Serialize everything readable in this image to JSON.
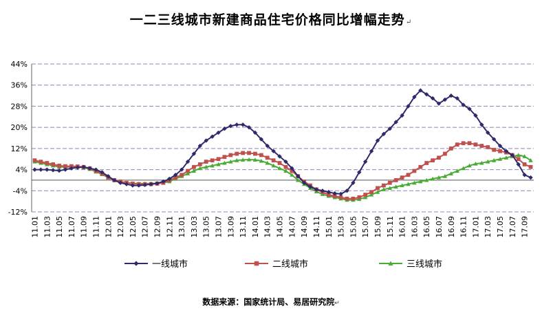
{
  "title": "一二三线城市新建商品住宅价格同比增幅走势",
  "edit_mark": "↵",
  "source": "数据来源：国家统计局、易居研究院",
  "chart_data": {
    "type": "line",
    "ylim": [
      -12,
      44
    ],
    "yticks": [
      -12,
      -4,
      4,
      12,
      20,
      28,
      36,
      44
    ],
    "ytick_labels": [
      "-12%",
      "-4%",
      "4%",
      "12%",
      "20%",
      "28%",
      "36%",
      "44%"
    ],
    "grid": true,
    "legend_position": "bottom",
    "x": [
      "11.01",
      "11.02",
      "11.03",
      "11.04",
      "11.05",
      "11.06",
      "11.07",
      "11.08",
      "11.09",
      "11.10",
      "11.11",
      "11.12",
      "12.01",
      "12.02",
      "12.03",
      "12.04",
      "12.05",
      "12.06",
      "12.07",
      "12.08",
      "12.09",
      "12.10",
      "12.11",
      "12.12",
      "13.01",
      "13.02",
      "13.03",
      "13.04",
      "13.05",
      "13.06",
      "13.07",
      "13.08",
      "13.09",
      "13.10",
      "13.11",
      "13.12",
      "14.01",
      "14.02",
      "14.03",
      "14.04",
      "14.05",
      "14.06",
      "14.07",
      "14.08",
      "14.09",
      "14.10",
      "14.11",
      "14.12",
      "15.01",
      "15.02",
      "15.03",
      "15.04",
      "15.05",
      "15.06",
      "15.07",
      "15.08",
      "15.09",
      "15.10",
      "15.11",
      "15.12",
      "16.01",
      "16.02",
      "16.03",
      "16.04",
      "16.05",
      "16.06",
      "16.07",
      "16.08",
      "16.09",
      "16.10",
      "16.11",
      "16.12",
      "17.01",
      "17.02",
      "17.03",
      "17.04",
      "17.05",
      "17.06",
      "17.07",
      "17.08",
      "17.09",
      "17.10"
    ],
    "x_tick_labels": [
      "11.01",
      "11.03",
      "11.05",
      "11.07",
      "11.09",
      "11.11",
      "12.01",
      "12.03",
      "12.05",
      "12.07",
      "12.09",
      "12.11",
      "13.01",
      "13.03",
      "13.05",
      "13.07",
      "13.09",
      "13.11",
      "14.01",
      "14.03",
      "14.05",
      "14.07",
      "14.09",
      "14.11",
      "15.01",
      "15.03",
      "15.05",
      "15.07",
      "15.09",
      "15.11",
      "16.01",
      "16.03",
      "16.05",
      "16.07",
      "16.09",
      "16.11",
      "17.01",
      "17.03",
      "17.05",
      "17.07",
      "17.09"
    ],
    "series": [
      {
        "name": "一线城市",
        "color": "#2e2a6b",
        "marker": "diamond",
        "values": [
          4,
          4,
          4,
          3.8,
          3.6,
          4,
          4.5,
          4.8,
          5,
          4.5,
          4,
          3,
          1.5,
          0,
          -1,
          -1.5,
          -2,
          -2,
          -1.8,
          -1.5,
          -1.2,
          -0.5,
          0.5,
          2,
          4,
          7,
          10,
          13,
          15,
          16.5,
          18,
          19.5,
          20.5,
          21,
          21,
          20,
          18,
          15.5,
          13,
          11,
          9,
          7,
          4.5,
          1.5,
          -1,
          -2.5,
          -3.5,
          -4,
          -4.5,
          -5,
          -5.2,
          -4,
          -1,
          3,
          7,
          11,
          15,
          17.5,
          19.5,
          22,
          24.5,
          28,
          31.5,
          34,
          32.5,
          31,
          29,
          30.5,
          32,
          31,
          28.5,
          27,
          24.5,
          21,
          18,
          15.5,
          13,
          11,
          9.5,
          6,
          2,
          1
        ]
      },
      {
        "name": "二线城市",
        "color": "#c0504d",
        "marker": "square",
        "values": [
          7.5,
          7,
          6.5,
          6,
          5.5,
          5.3,
          5.3,
          5.2,
          5,
          4.5,
          3.5,
          2.5,
          1,
          0,
          -0.5,
          -1,
          -1.3,
          -1.5,
          -1.5,
          -1.5,
          -1.3,
          -1,
          0,
          1,
          2,
          3.5,
          5,
          6,
          7,
          7.5,
          8,
          8.8,
          9.5,
          10,
          10.3,
          10.3,
          10,
          9.5,
          8.5,
          7.5,
          6.5,
          5,
          3.5,
          1.5,
          -0.5,
          -2,
          -3.5,
          -4.5,
          -5.5,
          -6,
          -6.5,
          -7,
          -7,
          -6.5,
          -5.5,
          -4.5,
          -3,
          -2,
          -1,
          0,
          1,
          2,
          3.5,
          5,
          6.5,
          7.5,
          8.5,
          10,
          12,
          13.5,
          14,
          14,
          13.5,
          13,
          12.5,
          11.5,
          11,
          10.5,
          9.5,
          8,
          6,
          5
        ]
      },
      {
        "name": "三线城市",
        "color": "#4aab34",
        "marker": "triangle",
        "values": [
          7,
          6.5,
          6,
          5.5,
          5,
          5,
          5,
          5,
          4.8,
          4.2,
          3.2,
          2.2,
          1,
          0,
          -0.5,
          -1,
          -1.2,
          -1.3,
          -1.3,
          -1.3,
          -1.2,
          -1,
          -0.5,
          0.5,
          1.5,
          2.5,
          3.5,
          4.5,
          5,
          5.5,
          6,
          6.5,
          7,
          7.5,
          7.7,
          7.8,
          7.7,
          7.3,
          6.5,
          5.5,
          4.5,
          3.5,
          2,
          0,
          -1.5,
          -3,
          -4.3,
          -5.3,
          -6,
          -6.5,
          -7,
          -7.5,
          -7.5,
          -7.2,
          -6.5,
          -5.5,
          -4.5,
          -3.5,
          -3,
          -2.5,
          -2,
          -1.5,
          -1,
          -0.5,
          0,
          0.5,
          1,
          1.5,
          2.5,
          3.5,
          4.5,
          5.5,
          6.2,
          6.5,
          7,
          7.5,
          8,
          8.5,
          9,
          9.5,
          9,
          7.5
        ]
      }
    ]
  }
}
